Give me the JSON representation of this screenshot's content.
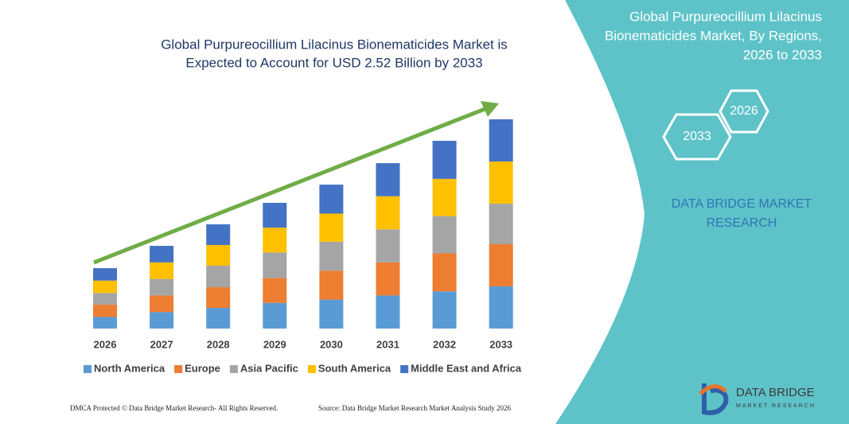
{
  "chart_data": {
    "type": "stacked_bar",
    "title": [
      "Global Purpureocillium Lilacinus Bionematicides Market is",
      "Expected to Account for USD 2.52 Billion by 2033"
    ],
    "categories": [
      "2026",
      "2027",
      "2028",
      "2029",
      "2030",
      "2031",
      "2032",
      "2033"
    ],
    "series": [
      {
        "name": "North America",
        "color": "#5b9bd5",
        "values": [
          0.14,
          0.2,
          0.25,
          0.31,
          0.35,
          0.4,
          0.45,
          0.51
        ]
      },
      {
        "name": "Europe",
        "color": "#ed7d31",
        "values": [
          0.15,
          0.2,
          0.25,
          0.3,
          0.35,
          0.4,
          0.46,
          0.51
        ]
      },
      {
        "name": "Asia Pacific",
        "color": "#a5a5a5",
        "values": [
          0.14,
          0.2,
          0.26,
          0.31,
          0.35,
          0.4,
          0.45,
          0.49
        ]
      },
      {
        "name": "South America",
        "color": "#ffc000",
        "values": [
          0.15,
          0.2,
          0.25,
          0.3,
          0.34,
          0.4,
          0.45,
          0.51
        ]
      },
      {
        "name": "Middle East and Africa",
        "color": "#4472c4",
        "values": [
          0.15,
          0.2,
          0.25,
          0.3,
          0.35,
          0.4,
          0.46,
          0.51
        ]
      }
    ]
  },
  "panel": {
    "title": [
      "Global Purpureocillium Lilacinus",
      "Bionematicides Market, By Regions,",
      "2026 to 2033"
    ],
    "hexagons": [
      "2026",
      "2033"
    ],
    "brand": [
      "DATA BRIDGE MARKET",
      "RESEARCH"
    ],
    "logo": [
      "DATA BRIDGE",
      "MARKET RESEARCH"
    ]
  },
  "footer": {
    "left": "DMCA Protected © Data Bridge Market Research- All Rights Reserved.",
    "right": "Source: Data Bridge Market Research Market Analysis Study 2026"
  }
}
